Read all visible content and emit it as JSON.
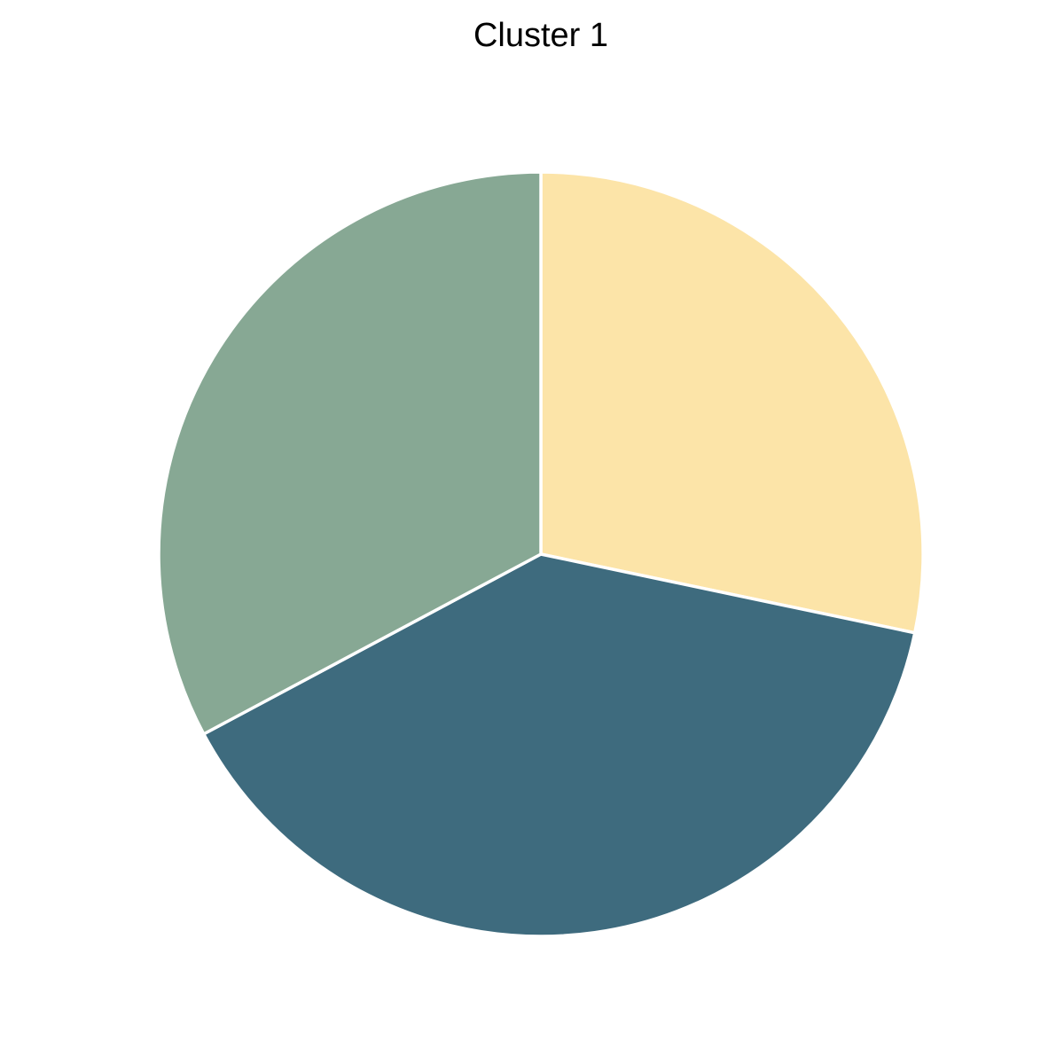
{
  "chart_data": {
    "type": "pie",
    "title": "Cluster 1",
    "start_angle_deg": 90,
    "direction": "clockwise",
    "slices": [
      {
        "value": 28.3,
        "color": "#fce4a8"
      },
      {
        "value": 38.9,
        "color": "#3e6b7e"
      },
      {
        "value": 32.8,
        "color": "#87a894"
      }
    ],
    "legend": "none"
  }
}
